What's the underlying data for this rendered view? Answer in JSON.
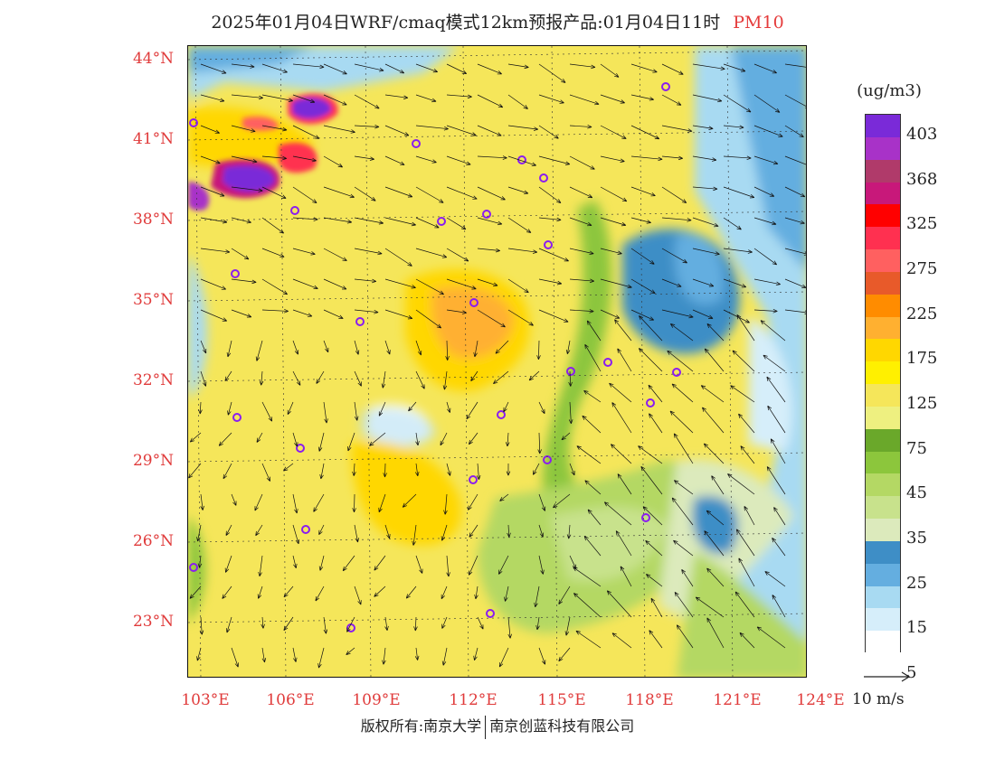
{
  "title": {
    "prefix": "2025年01月04日WRF/cmaq模式12km预报产品:01月04日11时",
    "species": "PM10"
  },
  "colors": {
    "axis_label": "#e03b3b",
    "city_marker": "#8a1cf0"
  },
  "axes": {
    "lat_labels": [
      "44°N",
      "41°N",
      "38°N",
      "35°N",
      "32°N",
      "29°N",
      "26°N",
      "23°N"
    ],
    "lon_labels": [
      "103°E",
      "106°E",
      "109°E",
      "112°E",
      "115°E",
      "118°E",
      "121°E",
      "124°E"
    ]
  },
  "colorbar": {
    "unit": "(ug/m3)",
    "labels": [
      "403",
      "368",
      "325",
      "275",
      "225",
      "175",
      "125",
      "75",
      "45",
      "35",
      "25",
      "15",
      "5"
    ],
    "colors": [
      "#7a2ad8",
      "#a832c8",
      "#b03a6a",
      "#c8187a",
      "#ff0000",
      "#ff3050",
      "#ff6060",
      "#e85a2a",
      "#ff8c00",
      "#ffb030",
      "#ffd700",
      "#fff000",
      "#f5e65a",
      "#eef080",
      "#6aa82a",
      "#8cc63c",
      "#b4d864",
      "#c8e28c",
      "#dceabc",
      "#3e8ec6",
      "#64aee0",
      "#a8daf2",
      "#d6eefa",
      "#ffffff"
    ]
  },
  "wind_reference": {
    "label": "10 m/s"
  },
  "footer": {
    "left": "版权所有:南京大学",
    "right": "南京创蓝科技有限公司"
  }
}
